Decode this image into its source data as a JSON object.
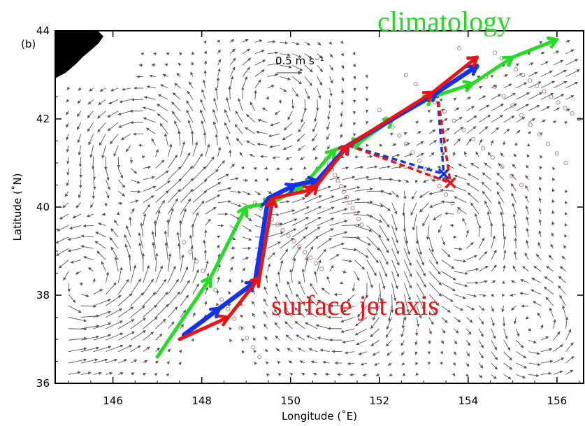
{
  "chart_data": {
    "type": "line",
    "panel_label": "(b)",
    "xlabel": "Longitude (˚E)",
    "ylabel": "Latitude (˚N)",
    "xlim": [
      144.7,
      156.6
    ],
    "ylim": [
      36.0,
      44.0
    ],
    "x_ticks": [
      146,
      148,
      150,
      152,
      154,
      156
    ],
    "y_ticks": [
      36,
      38,
      40,
      42,
      44
    ],
    "scale_label": "0.5 m s⁻¹",
    "annotations": {
      "climatology": "climatology",
      "surface_jet": "surface jet axis"
    },
    "colors": {
      "green": "#22dd22",
      "red": "#ee1111",
      "blue": "#1133ee",
      "vectors": "#555555",
      "circles": "#b08a8a"
    },
    "series": [
      {
        "name": "climatology",
        "color": "#22dd22",
        "x": [
          147.0,
          148.2,
          149.0,
          149.6,
          150.3,
          151.0,
          151.6,
          152.3,
          153.2,
          154.1,
          155.0,
          156.0
        ],
        "y": [
          36.6,
          38.4,
          40.0,
          40.1,
          40.5,
          41.3,
          41.5,
          42.0,
          42.5,
          42.8,
          43.4,
          43.8
        ]
      },
      {
        "color": "#ee1111",
        "x": [
          147.5,
          148.6,
          149.3,
          149.6,
          150.5,
          150.6,
          151.3,
          153.2,
          154.2
        ],
        "y": [
          37.0,
          37.5,
          38.4,
          40.2,
          40.4,
          40.5,
          41.4,
          42.6,
          43.4
        ]
      },
      {
        "color": "#1133ee",
        "x": [
          147.6,
          148.4,
          149.2,
          149.5,
          150.1,
          150.6,
          151.3,
          153.3,
          154.2
        ],
        "y": [
          37.1,
          37.7,
          38.3,
          40.2,
          40.5,
          40.6,
          41.4,
          42.6,
          43.2
        ]
      }
    ],
    "branches": [
      {
        "color": "#1133ee",
        "style": "dashed",
        "x": [
          151.3,
          153.45
        ],
        "y": [
          41.4,
          40.75
        ],
        "marker_x": 153.45,
        "marker_y": 40.75
      },
      {
        "color": "#1133ee",
        "style": "dashed",
        "x": [
          153.3,
          153.45
        ],
        "y": [
          42.6,
          40.75
        ]
      },
      {
        "color": "#ee1111",
        "style": "dashed",
        "x": [
          151.3,
          153.6
        ],
        "y": [
          41.4,
          40.55
        ],
        "marker_x": 153.6,
        "marker_y": 40.55
      },
      {
        "color": "#ee1111",
        "style": "dashed",
        "x": [
          153.3,
          153.6
        ],
        "y": [
          42.6,
          40.55
        ]
      }
    ]
  }
}
